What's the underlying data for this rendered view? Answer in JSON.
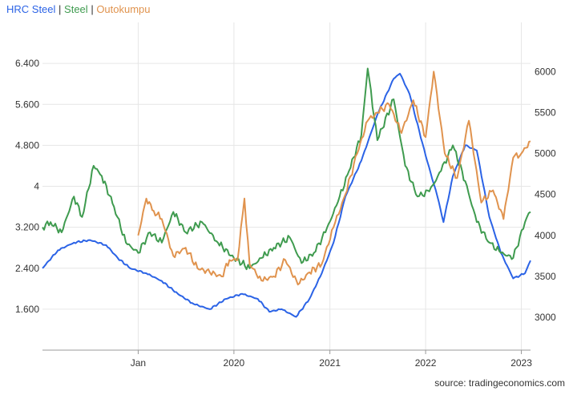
{
  "legend": [
    {
      "name": "HRC Steel",
      "color": "#2b63e6"
    },
    {
      "name": "Steel",
      "color": "#3f9b4f"
    },
    {
      "name": "Outokumpu",
      "color": "#e0934e"
    }
  ],
  "source": "source: tradingeconomics.com",
  "chart_data": {
    "type": "line",
    "grid": true,
    "legend_position": "top-left",
    "x_tick_labels": [
      "Jan",
      "2020",
      "2021",
      "2022",
      "2023"
    ],
    "x_tick_dates": [
      "2019-01-01",
      "2020-01-01",
      "2021-01-01",
      "2022-01-01",
      "2023-01-01"
    ],
    "xlim": [
      "2018-01-01",
      "2023-02-05"
    ],
    "y_left": {
      "tick_labels": [
        "1.600",
        "2.400",
        "3.200",
        "4",
        "4.800",
        "5.600",
        "6.400"
      ],
      "ticks": [
        1600,
        2400,
        3200,
        4000,
        4800,
        5600,
        6400
      ],
      "lim": [
        800,
        7200
      ]
    },
    "y_right": {
      "tick_labels": [
        "3000",
        "3500",
        "4000",
        "4500",
        "5000",
        "5500",
        "6000"
      ],
      "ticks": [
        3000,
        3500,
        4000,
        4500,
        5000,
        5500,
        6000
      ],
      "lim": [
        2600,
        6600
      ]
    },
    "series": [
      {
        "name": "HRC Steel",
        "axis": "left",
        "color": "#2b63e6",
        "x": [
          "2018-01-01",
          "2018-03-01",
          "2018-05-01",
          "2018-07-01",
          "2018-09-01",
          "2018-10-15",
          "2018-12-01",
          "2019-02-01",
          "2019-04-01",
          "2019-06-01",
          "2019-08-01",
          "2019-10-01",
          "2019-12-01",
          "2020-02-01",
          "2020-04-01",
          "2020-05-15",
          "2020-07-01",
          "2020-08-25",
          "2020-10-15",
          "2020-12-01",
          "2021-01-15",
          "2021-03-01",
          "2021-05-01",
          "2021-07-01",
          "2021-09-01",
          "2021-09-25",
          "2021-11-01",
          "2022-01-01",
          "2022-02-15",
          "2022-03-10",
          "2022-04-15",
          "2022-06-01",
          "2022-07-15",
          "2022-09-01",
          "2022-10-15",
          "2022-12-01",
          "2023-01-15",
          "2023-02-05"
        ],
        "values": [
          2400,
          2750,
          2900,
          2950,
          2850,
          2600,
          2400,
          2300,
          2150,
          1900,
          1700,
          1600,
          1800,
          1900,
          1800,
          1550,
          1600,
          1450,
          1800,
          2300,
          2900,
          3800,
          4500,
          5400,
          6100,
          6200,
          5800,
          4600,
          3800,
          3300,
          4200,
          4800,
          4700,
          3400,
          2700,
          2200,
          2300,
          2550
        ]
      },
      {
        "name": "Steel",
        "axis": "left",
        "color": "#3f9b4f",
        "x": [
          "2018-01-01",
          "2018-02-01",
          "2018-03-15",
          "2018-05-01",
          "2018-06-01",
          "2018-07-15",
          "2018-08-15",
          "2018-10-01",
          "2018-11-15",
          "2019-01-01",
          "2019-02-15",
          "2019-04-01",
          "2019-05-15",
          "2019-07-01",
          "2019-09-01",
          "2019-11-01",
          "2020-01-01",
          "2020-03-01",
          "2020-04-15",
          "2020-06-01",
          "2020-08-01",
          "2020-09-15",
          "2020-11-01",
          "2020-12-15",
          "2021-02-01",
          "2021-03-15",
          "2021-05-01",
          "2021-05-25",
          "2021-07-01",
          "2021-09-01",
          "2021-10-15",
          "2021-12-01",
          "2022-01-15",
          "2022-03-01",
          "2022-04-15",
          "2022-06-01",
          "2022-07-15",
          "2022-09-01",
          "2022-10-15",
          "2022-12-01",
          "2023-01-15",
          "2023-02-05"
        ],
        "values": [
          3200,
          3300,
          3100,
          3800,
          3400,
          4400,
          4200,
          3600,
          2900,
          2700,
          3100,
          2900,
          3500,
          3100,
          3300,
          2900,
          2600,
          2400,
          2600,
          2800,
          3000,
          2500,
          2700,
          3100,
          3700,
          4300,
          5000,
          6300,
          4900,
          5700,
          4400,
          3800,
          3900,
          4300,
          4800,
          4100,
          3300,
          2900,
          2700,
          2600,
          3300,
          3500
        ]
      },
      {
        "name": "Outokumpu",
        "axis": "right",
        "color": "#e0934e",
        "x": [
          "2019-01-01",
          "2019-02-01",
          "2019-03-01",
          "2019-04-01",
          "2019-05-15",
          "2019-07-01",
          "2019-08-15",
          "2019-10-01",
          "2019-11-15",
          "2019-12-15",
          "2020-01-15",
          "2020-02-10",
          "2020-03-01",
          "2020-04-15",
          "2020-06-01",
          "2020-07-15",
          "2020-09-01",
          "2020-10-15",
          "2020-12-01",
          "2021-01-15",
          "2021-03-01",
          "2021-04-15",
          "2021-05-25",
          "2021-07-01",
          "2021-08-15",
          "2021-10-01",
          "2021-11-15",
          "2022-01-01",
          "2022-02-01",
          "2022-03-15",
          "2022-05-01",
          "2022-06-15",
          "2022-08-01",
          "2022-09-15",
          "2022-10-25",
          "2022-12-01",
          "2023-01-01",
          "2023-02-05"
        ],
        "values": [
          4000,
          4450,
          4300,
          4200,
          3750,
          3850,
          3600,
          3550,
          3500,
          3700,
          3700,
          4450,
          3650,
          3450,
          3500,
          3700,
          3400,
          3550,
          3650,
          4100,
          4500,
          5000,
          5400,
          5500,
          5600,
          5250,
          5650,
          5200,
          6000,
          5000,
          4700,
          5400,
          4400,
          4550,
          4200,
          4950,
          5000,
          5150
        ]
      }
    ]
  }
}
